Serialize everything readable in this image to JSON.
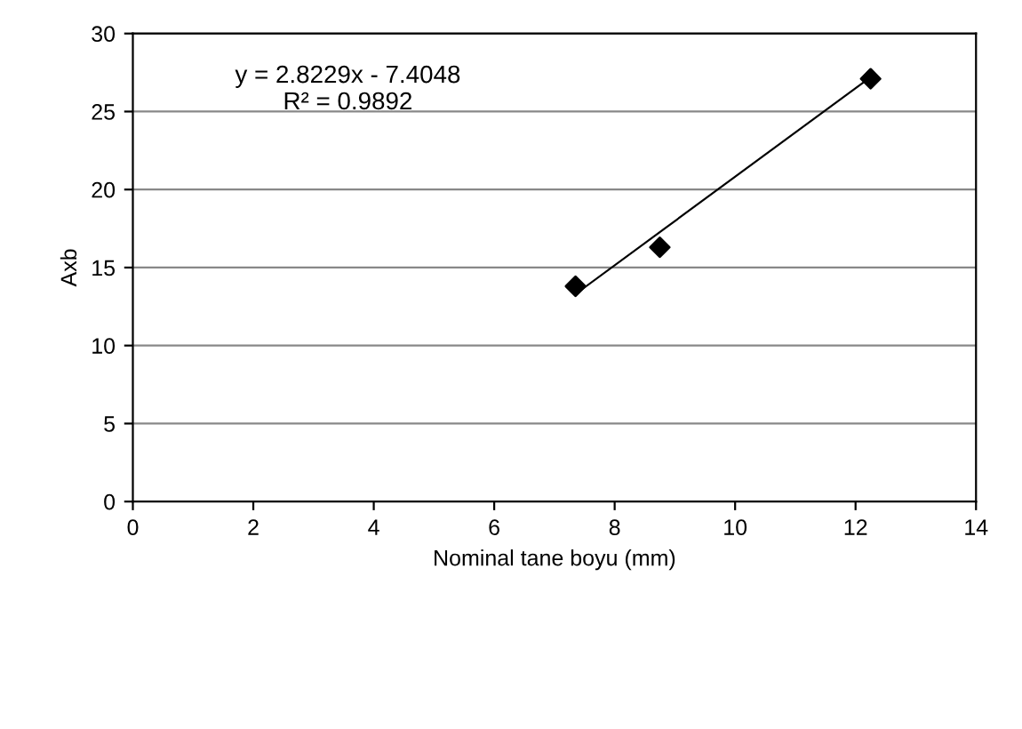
{
  "chart_data": {
    "type": "scatter",
    "xlabel": "Nominal tane boyu (mm)",
    "ylabel": "Axb",
    "series": [
      {
        "type": "scatter",
        "color": "#000000",
        "x": [
          7.35,
          8.75,
          12.25
        ],
        "values": [
          13.8,
          16.3,
          27.1
        ],
        "marker": "diamond"
      },
      {
        "type": "line",
        "color": "#000000",
        "x": [
          7.35,
          12.25
        ],
        "values": [
          13.3,
          27.2
        ],
        "marker": "none",
        "line_style": "solid"
      }
    ],
    "annotations": [
      "y = 2.8229x - 7.4048\nR² = 0.9892"
    ],
    "xlim": [
      0,
      14
    ],
    "xticks": [
      0,
      2,
      4,
      6,
      8,
      10,
      12,
      14
    ],
    "ylim": [
      0,
      30
    ],
    "yticks": [
      0,
      5,
      10,
      15,
      20,
      25,
      30
    ],
    "grid": "y",
    "legend": false
  }
}
